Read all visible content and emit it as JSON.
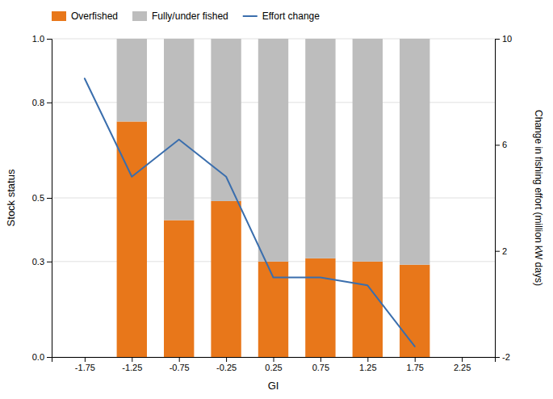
{
  "chart_data": {
    "type": "bar",
    "stacked": true,
    "xlabel": "GI",
    "ylabel": "Stock status",
    "y2label": "Change in fishing effort (million kW days)",
    "xlim": [
      -2.1,
      2.6
    ],
    "xticks": [
      -1.75,
      -1.25,
      -0.75,
      -0.25,
      0.25,
      0.75,
      1.25,
      1.75,
      2.25
    ],
    "ylim": [
      0.0,
      1.0
    ],
    "yticks": [
      {
        "value": 0.0,
        "label": "0.0"
      },
      0.3,
      0.5,
      0.8,
      {
        "value": 1.0,
        "label": "1.0"
      }
    ],
    "y2lim": [
      -2,
      10
    ],
    "y2ticks": [
      -2,
      2,
      6,
      10
    ],
    "grid": true,
    "legend": "upper left",
    "series": [
      {
        "name": "Overfished",
        "type": "bar",
        "color": "#E8771A",
        "x": [
          -1.25,
          -0.75,
          -0.25,
          0.25,
          0.75,
          1.25,
          1.75
        ],
        "values": [
          0.74,
          0.43,
          0.49,
          0.3,
          0.31,
          0.3,
          0.29
        ]
      },
      {
        "name": "Fully/under fished",
        "type": "bar",
        "color": "#BDBDBD",
        "x": [
          -1.25,
          -0.75,
          -0.25,
          0.25,
          0.75,
          1.25,
          1.75
        ],
        "values": [
          0.26,
          0.57,
          0.51,
          0.7,
          0.69,
          0.7,
          0.71
        ]
      },
      {
        "name": "Effort change",
        "type": "line",
        "axis": "y2",
        "color": "#3A6EAD",
        "x": [
          -1.75,
          -1.25,
          -0.75,
          -0.25,
          0.25,
          0.75,
          1.25,
          1.75
        ],
        "values": [
          8.5,
          4.8,
          6.2,
          4.8,
          1.0,
          1.0,
          0.7,
          -1.6
        ]
      }
    ]
  }
}
